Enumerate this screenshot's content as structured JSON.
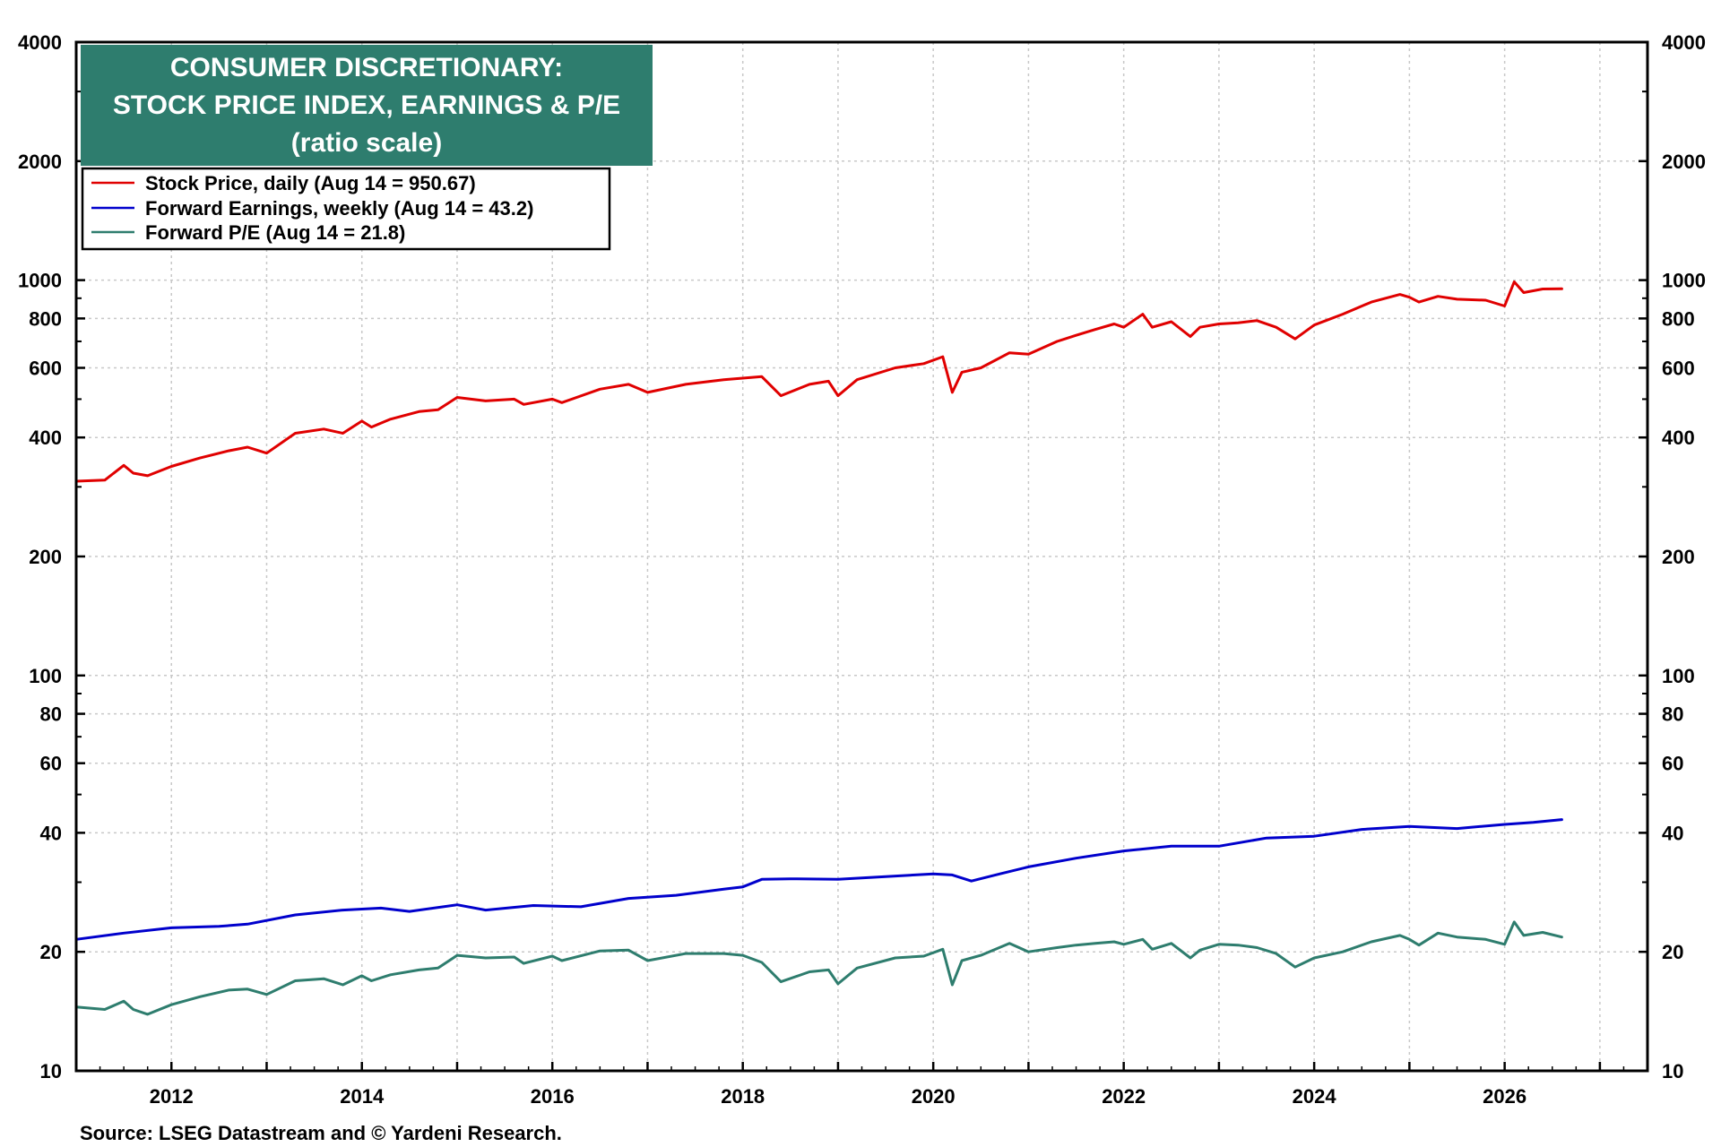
{
  "chart_data": {
    "type": "line",
    "title_lines": [
      "CONSUMER DISCRETIONARY:",
      "STOCK PRICE INDEX, EARNINGS & P/E",
      "(ratio scale)"
    ],
    "title_bg": "#2e7d6e",
    "y_scale": "log",
    "ylim": [
      10,
      4000
    ],
    "xlim": [
      2011.0,
      2027.5
    ],
    "y_ticks": [
      10,
      20,
      40,
      60,
      80,
      100,
      200,
      400,
      600,
      800,
      1000,
      2000,
      4000
    ],
    "y_tick_labels": [
      "10",
      "20",
      "40",
      "60",
      "80",
      "100",
      "200",
      "400",
      "600",
      "800",
      "1000",
      "2000",
      "4000"
    ],
    "x_ticks": [
      2012,
      2014,
      2016,
      2018,
      2020,
      2022,
      2024,
      2026
    ],
    "x_tick_labels": [
      "2012",
      "2014",
      "2016",
      "2018",
      "2020",
      "2022",
      "2024",
      "2026"
    ],
    "grid": true,
    "legend_position": "top-left",
    "source": "Source: LSEG Datastream and © Yardeni Research.",
    "series": [
      {
        "name": "Stock Price, daily (Aug 14 = 950.67)",
        "color": "#e00000",
        "x": [
          2011.0,
          2011.3,
          2011.5,
          2011.6,
          2011.75,
          2012.0,
          2012.3,
          2012.6,
          2012.8,
          2013.0,
          2013.3,
          2013.6,
          2013.8,
          2014.0,
          2014.1,
          2014.3,
          2014.6,
          2014.8,
          2015.0,
          2015.3,
          2015.6,
          2015.7,
          2016.0,
          2016.1,
          2016.5,
          2016.8,
          2017.0,
          2017.4,
          2017.8,
          2018.0,
          2018.2,
          2018.4,
          2018.7,
          2018.9,
          2019.0,
          2019.2,
          2019.6,
          2019.9,
          2020.1,
          2020.2,
          2020.3,
          2020.5,
          2020.8,
          2021.0,
          2021.3,
          2021.5,
          2021.7,
          2021.9,
          2022.0,
          2022.2,
          2022.3,
          2022.5,
          2022.7,
          2022.8,
          2023.0,
          2023.2,
          2023.4,
          2023.6,
          2023.8,
          2024.0,
          2024.3,
          2024.6,
          2024.9,
          2025.0,
          2025.1,
          2025.3,
          2025.5,
          2025.8,
          2026.0,
          2026.1,
          2026.2,
          2026.4,
          2026.6
        ],
        "values": [
          310,
          312,
          340,
          325,
          320,
          338,
          355,
          370,
          378,
          365,
          410,
          420,
          410,
          440,
          425,
          445,
          465,
          470,
          505,
          495,
          500,
          485,
          500,
          490,
          530,
          545,
          520,
          545,
          560,
          565,
          570,
          510,
          545,
          555,
          510,
          560,
          600,
          615,
          640,
          520,
          585,
          600,
          655,
          650,
          700,
          725,
          750,
          775,
          760,
          820,
          760,
          785,
          720,
          760,
          775,
          780,
          790,
          760,
          710,
          770,
          820,
          880,
          920,
          905,
          880,
          910,
          895,
          890,
          860,
          990,
          930,
          950,
          950.67
        ]
      },
      {
        "name": "Forward Earnings, weekly (Aug 14 = 43.2)",
        "color": "#0000cc",
        "x": [
          2011.0,
          2011.5,
          2012.0,
          2012.5,
          2012.8,
          2013.3,
          2013.8,
          2014.2,
          2014.5,
          2015.0,
          2015.3,
          2015.8,
          2016.3,
          2016.8,
          2017.3,
          2017.8,
          2018.0,
          2018.2,
          2018.5,
          2019.0,
          2019.5,
          2020.0,
          2020.2,
          2020.4,
          2020.7,
          2021.0,
          2021.5,
          2022.0,
          2022.5,
          2023.0,
          2023.5,
          2024.0,
          2024.5,
          2025.0,
          2025.5,
          2026.0,
          2026.3,
          2026.6
        ],
        "values": [
          21.5,
          22.3,
          23.0,
          23.2,
          23.5,
          24.8,
          25.5,
          25.8,
          25.3,
          26.3,
          25.5,
          26.2,
          26.0,
          27.3,
          27.8,
          28.8,
          29.2,
          30.5,
          30.6,
          30.5,
          31.0,
          31.5,
          31.3,
          30.2,
          31.5,
          32.8,
          34.5,
          36.0,
          37.0,
          37.0,
          38.8,
          39.2,
          40.8,
          41.5,
          41.0,
          42.0,
          42.5,
          43.2
        ]
      },
      {
        "name": "Forward P/E (Aug 14 = 21.8)",
        "color": "#2e7d6e",
        "x": [
          2011.0,
          2011.3,
          2011.5,
          2011.6,
          2011.75,
          2012.0,
          2012.3,
          2012.6,
          2012.8,
          2013.0,
          2013.3,
          2013.6,
          2013.8,
          2014.0,
          2014.1,
          2014.3,
          2014.6,
          2014.8,
          2015.0,
          2015.3,
          2015.6,
          2015.7,
          2016.0,
          2016.1,
          2016.5,
          2016.8,
          2017.0,
          2017.4,
          2017.8,
          2018.0,
          2018.2,
          2018.4,
          2018.7,
          2018.9,
          2019.0,
          2019.2,
          2019.6,
          2019.9,
          2020.1,
          2020.2,
          2020.3,
          2020.5,
          2020.8,
          2021.0,
          2021.3,
          2021.5,
          2021.7,
          2021.9,
          2022.0,
          2022.2,
          2022.3,
          2022.5,
          2022.7,
          2022.8,
          2023.0,
          2023.2,
          2023.4,
          2023.6,
          2023.8,
          2024.0,
          2024.3,
          2024.6,
          2024.9,
          2025.0,
          2025.1,
          2025.3,
          2025.5,
          2025.8,
          2026.0,
          2026.1,
          2026.2,
          2026.4,
          2026.6
        ],
        "values": [
          14.5,
          14.3,
          15.0,
          14.3,
          13.9,
          14.7,
          15.4,
          16.0,
          16.1,
          15.6,
          16.9,
          17.1,
          16.5,
          17.4,
          16.9,
          17.5,
          18.0,
          18.2,
          19.6,
          19.3,
          19.4,
          18.7,
          19.5,
          19.0,
          20.1,
          20.2,
          19.0,
          19.8,
          19.8,
          19.6,
          18.8,
          16.8,
          17.8,
          18.0,
          16.6,
          18.2,
          19.3,
          19.5,
          20.3,
          16.5,
          19.0,
          19.6,
          21.0,
          20.0,
          20.5,
          20.8,
          21.0,
          21.2,
          20.9,
          21.5,
          20.3,
          21.0,
          19.3,
          20.2,
          20.9,
          20.8,
          20.5,
          19.8,
          18.3,
          19.3,
          20.0,
          21.2,
          22.0,
          21.5,
          20.8,
          22.3,
          21.8,
          21.5,
          20.9,
          23.8,
          22.0,
          22.4,
          21.8
        ]
      }
    ]
  }
}
